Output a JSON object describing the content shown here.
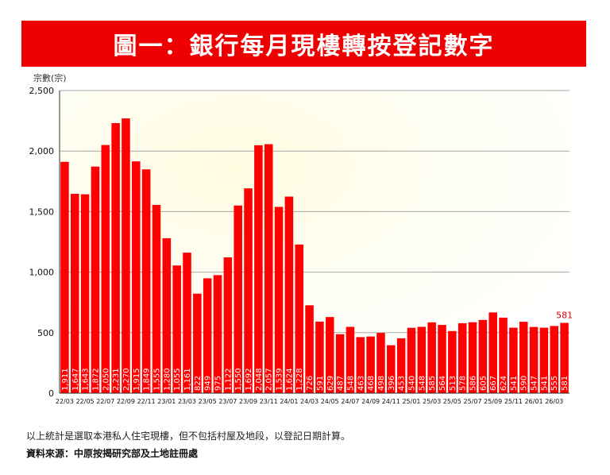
{
  "chart_data": {
    "type": "bar",
    "title": "圖一：銀行每月現樓轉按登記數字",
    "ylabel": "宗數(宗)",
    "ylim": [
      0,
      2500
    ],
    "yticks": [
      "0",
      "500",
      "1,000",
      "1,500",
      "2,000",
      "2,500"
    ],
    "ytick_values": [
      0,
      500,
      1000,
      1500,
      2000,
      2500
    ],
    "categories": [
      "22/03",
      "22/04",
      "22/05",
      "22/06",
      "22/07",
      "22/08",
      "22/09",
      "22/10",
      "22/11",
      "22/12",
      "23/01",
      "23/02",
      "23/03",
      "23/04",
      "23/05",
      "23/06",
      "23/07",
      "23/08",
      "23/09",
      "23/10",
      "23/11",
      "23/12",
      "24/01",
      "24/02",
      "24/03",
      "24/04",
      "24/05",
      "24/06",
      "24/07",
      "24/08",
      "24/09",
      "24/10",
      "24/11",
      "24/12",
      "25/01",
      "25/02",
      "25/03",
      "25/04",
      "25/05",
      "25/06",
      "25/07",
      "25/08",
      "25/09",
      "25/10",
      "25/11",
      "25/12",
      "26/01",
      "26/02",
      "26/03",
      "26/04"
    ],
    "xtick_labels": [
      "22/03",
      "",
      "22/05",
      "",
      "22/07",
      "",
      "22/09",
      "",
      "22/11",
      "",
      "23/01",
      "",
      "23/03",
      "",
      "23/05",
      "",
      "23/07",
      "",
      "23/09",
      "",
      "23/11",
      "",
      "24/01",
      "",
      "24/03",
      "",
      "24/05",
      "",
      "24/07",
      "",
      "24/09",
      "",
      "24/11",
      "",
      "25/01",
      "",
      "25/03",
      "",
      "25/05",
      "",
      "25/07",
      "",
      "25/09",
      "",
      "25/11",
      "",
      "26/01",
      "",
      "26/03",
      ""
    ],
    "values": [
      1911,
      1647,
      1643,
      1872,
      2050,
      2231,
      2270,
      1915,
      1849,
      1555,
      1280,
      1055,
      1161,
      822,
      949,
      975,
      1122,
      1550,
      1692,
      2048,
      2057,
      1539,
      1624,
      1228,
      726,
      591,
      629,
      487,
      548,
      463,
      468,
      498,
      396,
      453,
      540,
      548,
      585,
      564,
      513,
      578,
      586,
      605,
      667,
      624,
      541,
      590,
      547,
      541,
      555,
      581
    ],
    "value_labels": [
      "1,911",
      "1,647",
      "1,643",
      "1,872",
      "2,050",
      "2,231",
      "2,270",
      "1,915",
      "1,849",
      "1,555",
      "1,280",
      "1,055",
      "1,161",
      "822",
      "949",
      "975",
      "1,122",
      "1,550",
      "1,692",
      "2,048",
      "2,057",
      "1,539",
      "1,624",
      "1,228",
      "726",
      "591",
      "629",
      "487",
      "548",
      "463",
      "468",
      "498",
      "396",
      "453",
      "540",
      "548",
      "585",
      "564",
      "513",
      "578",
      "586",
      "605",
      "667",
      "624",
      "541",
      "590",
      "547",
      "541",
      "555",
      "581"
    ],
    "last_value_label": "581",
    "grid": true,
    "colors": {
      "bar": "#ff0000",
      "title_bg": "#ee0000",
      "label_highlight": "#dd0000",
      "grid": "#a8a8a8"
    }
  },
  "footnote": "以上統計是選取本港私人住宅現樓，但不包括村屋及地段，以登記日期計算。",
  "source": "資料來源：中原按揭研究部及土地註冊處"
}
